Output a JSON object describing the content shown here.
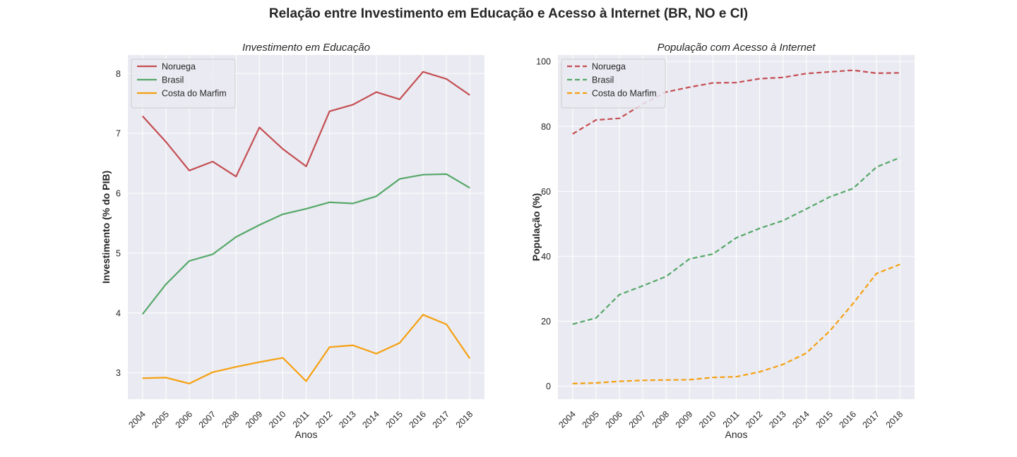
{
  "title": "Relação entre Investimento em Educação e Acesso à Internet (BR, NO e CI)",
  "chart_data": [
    {
      "type": "line",
      "title": "Investimento em Educação",
      "xlabel": "Anos",
      "ylabel": "Investimento (% do PIB)",
      "ylim": [
        2.56,
        8.31
      ],
      "yticks": [
        3,
        4,
        5,
        6,
        7,
        8
      ],
      "x": [
        2004,
        2005,
        2006,
        2007,
        2008,
        2009,
        2010,
        2011,
        2012,
        2013,
        2014,
        2015,
        2016,
        2017,
        2018
      ],
      "grid": true,
      "legend_position": "top-left",
      "line_style": "solid",
      "series": [
        {
          "name": "Noruega",
          "color": "#c44e52",
          "values": [
            7.29,
            6.86,
            6.38,
            6.53,
            6.28,
            7.1,
            6.74,
            6.45,
            7.37,
            7.48,
            7.69,
            7.57,
            8.03,
            7.91,
            7.64
          ]
        },
        {
          "name": "Brasil",
          "color": "#55a868",
          "values": [
            3.98,
            4.48,
            4.87,
            4.98,
            5.27,
            5.47,
            5.65,
            5.74,
            5.85,
            5.83,
            5.95,
            6.24,
            6.31,
            6.32,
            6.09
          ]
        },
        {
          "name": "Costa do Marfim",
          "color": "#f5a00f",
          "values": [
            2.91,
            2.92,
            2.82,
            3.01,
            3.1,
            3.18,
            3.25,
            2.86,
            3.43,
            3.46,
            3.32,
            3.5,
            3.97,
            3.81,
            3.24
          ]
        }
      ]
    },
    {
      "type": "line",
      "title": "População com Acesso à Internet",
      "xlabel": "Anos",
      "ylabel": "População (%)",
      "ylim": [
        -4,
        102
      ],
      "yticks": [
        0,
        20,
        40,
        60,
        80,
        100
      ],
      "x": [
        2004,
        2005,
        2006,
        2007,
        2008,
        2009,
        2010,
        2011,
        2012,
        2013,
        2014,
        2015,
        2016,
        2017,
        2018
      ],
      "grid": true,
      "legend_position": "top-left",
      "line_style": "dashed",
      "series": [
        {
          "name": "Noruega",
          "color": "#c44e52",
          "values": [
            77.7,
            82.0,
            82.5,
            86.9,
            90.6,
            92.1,
            93.4,
            93.5,
            94.7,
            95.1,
            96.3,
            96.8,
            97.3,
            96.4,
            96.5
          ]
        },
        {
          "name": "Brasil",
          "color": "#55a868",
          "values": [
            19.1,
            21.0,
            28.2,
            30.9,
            33.8,
            39.2,
            40.7,
            45.7,
            48.6,
            51.0,
            54.6,
            58.3,
            60.9,
            67.5,
            70.4
          ]
        },
        {
          "name": "Costa do Marfim",
          "color": "#f5a00f",
          "values": [
            0.8,
            1.0,
            1.5,
            1.8,
            1.9,
            2.0,
            2.7,
            2.9,
            4.4,
            6.7,
            10.2,
            17.0,
            25.5,
            34.7,
            37.5
          ]
        }
      ]
    }
  ]
}
